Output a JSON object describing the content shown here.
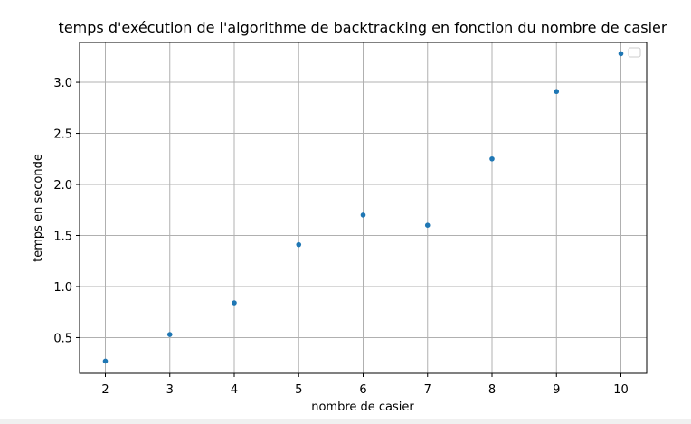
{
  "chart_data": {
    "type": "scatter",
    "title": "temps d'exécution de l'algorithme de backtracking en fonction du nombre de casier",
    "xlabel": "nombre de casier",
    "ylabel": "temps en seconde",
    "xlim": [
      1.6,
      10.4
    ],
    "ylim": [
      0.15,
      3.39
    ],
    "x_ticks": [
      2,
      3,
      4,
      5,
      6,
      7,
      8,
      9,
      10
    ],
    "y_ticks": [
      0.5,
      1.0,
      1.5,
      2.0,
      2.5,
      3.0
    ],
    "y_tick_labels": [
      "0.5",
      "1.0",
      "1.5",
      "2.0",
      "2.5",
      "3.0"
    ],
    "grid": true,
    "legend": "top-right (empty)",
    "series": [
      {
        "color": "#1f77b4",
        "x": [
          2,
          3,
          4,
          5,
          6,
          7,
          8,
          9,
          10
        ],
        "y": [
          0.27,
          0.53,
          0.84,
          1.41,
          1.7,
          1.6,
          2.25,
          2.91,
          3.28
        ]
      }
    ]
  }
}
